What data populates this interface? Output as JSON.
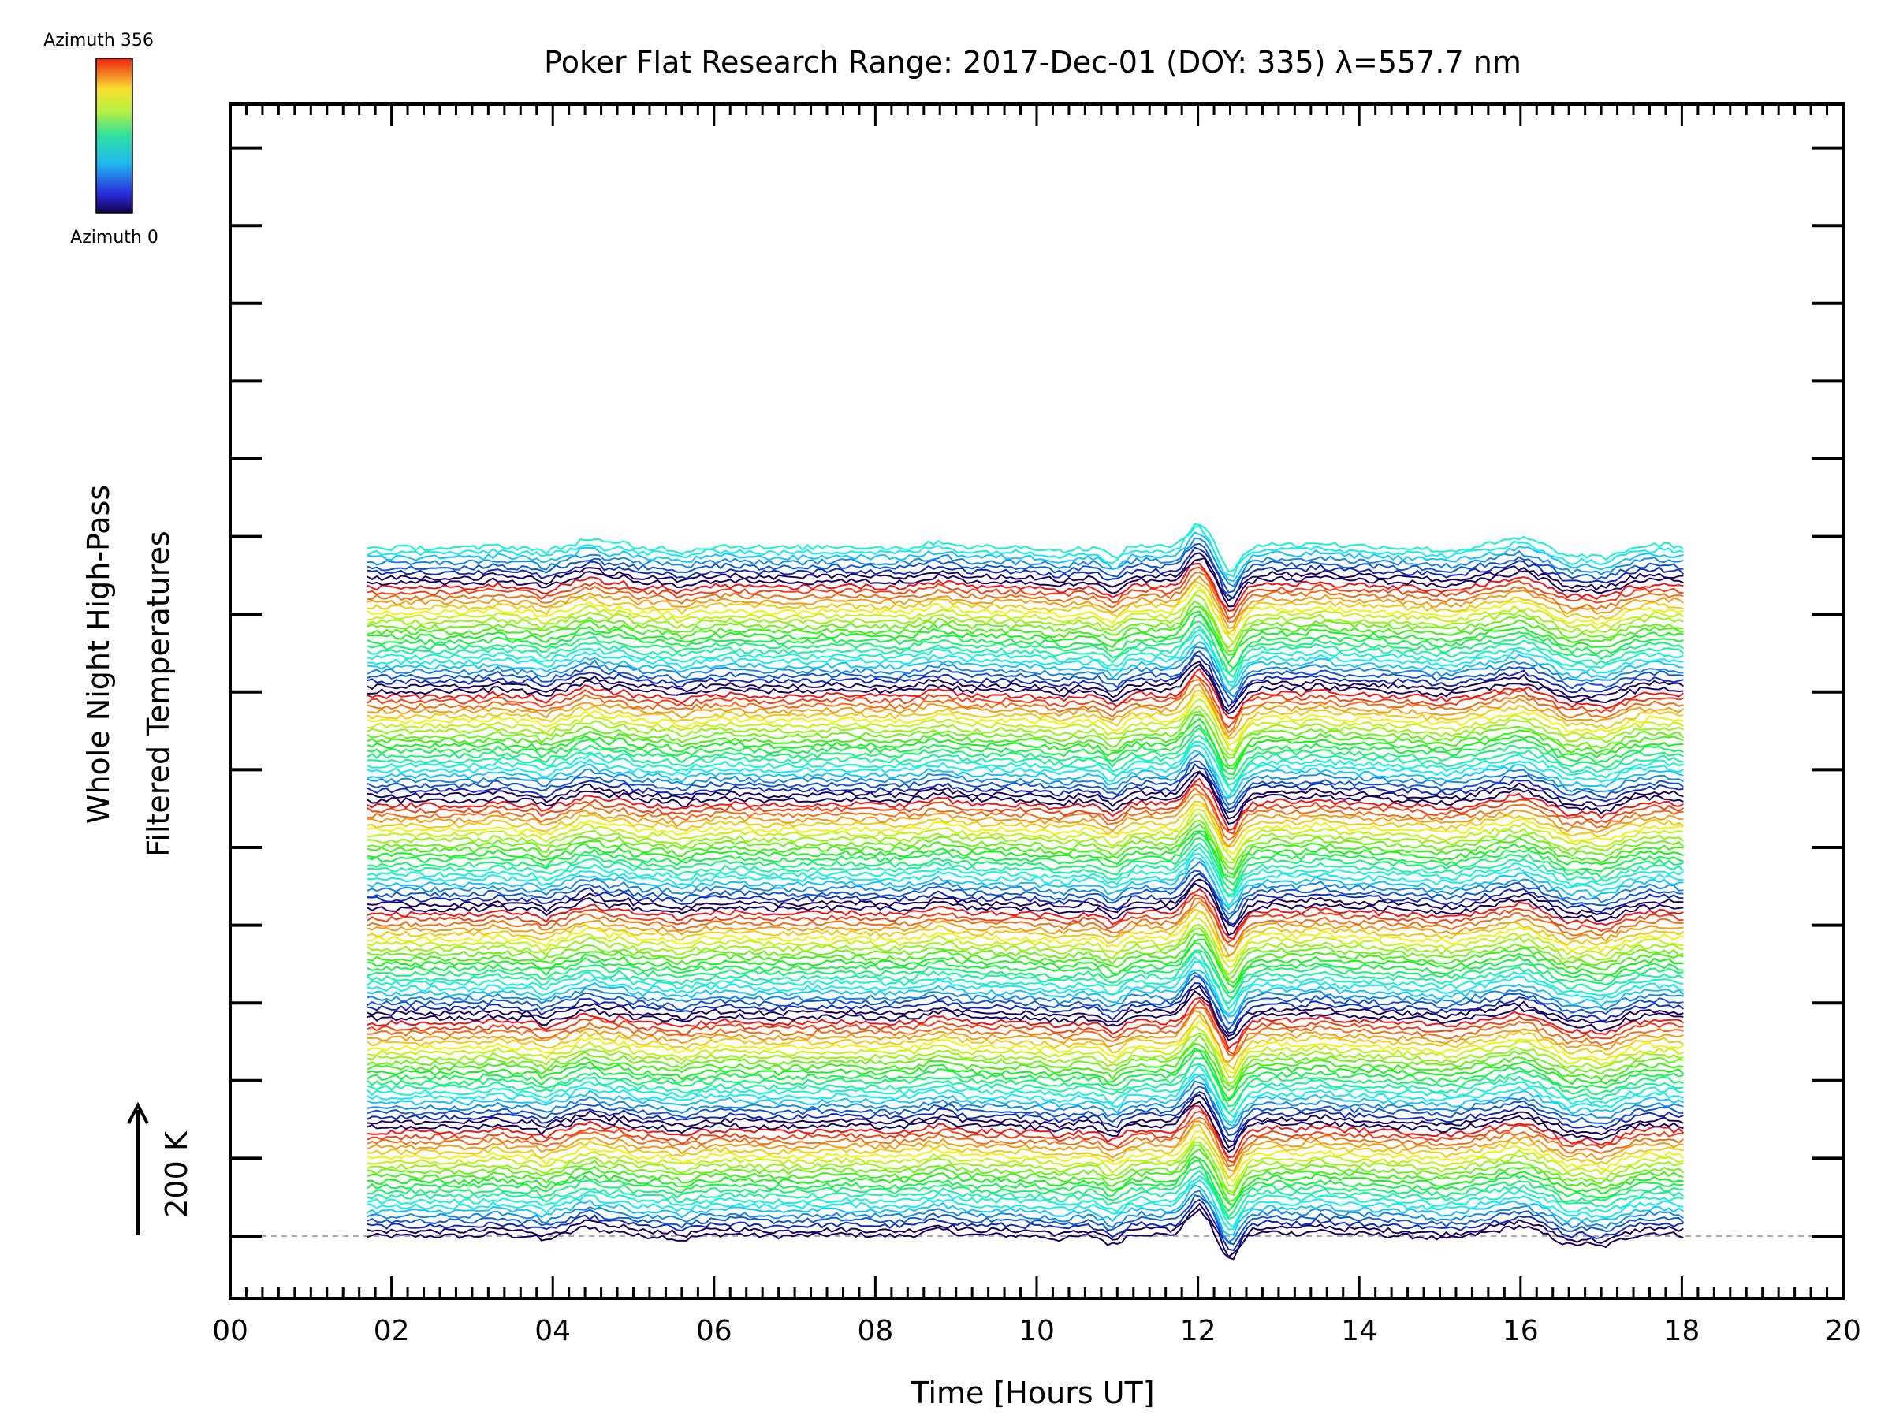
{
  "chart_data": {
    "type": "line",
    "title": "Poker Flat Research Range: 2017-Dec-01 (DOY: 335) λ=557.7 nm",
    "xlabel": "Time [Hours UT]",
    "ylabel_line1": "Whole Night High-Pass",
    "ylabel_line2": "Filtered Temperatures",
    "scale_label": "200 K",
    "scale_value_K": 200,
    "xlim": [
      0,
      20
    ],
    "x_ticks": [
      "00",
      "02",
      "04",
      "06",
      "08",
      "10",
      "12",
      "14",
      "16",
      "18",
      "20"
    ],
    "colorbar": {
      "top_label": "Azimuth 356",
      "bottom_label": "Azimuth 0",
      "min": 0,
      "max": 356
    },
    "trace_time_range_hours": [
      1.7,
      18.05
    ],
    "trace_count": 140,
    "scans_per_cycle": 22,
    "key_features": [
      {
        "time_hours": 12.0,
        "description": "sharp positive peak"
      },
      {
        "time_hours": 12.4,
        "description": "sharp negative dip"
      },
      {
        "time_hours": 4.5,
        "description": "positive bump"
      },
      {
        "time_hours": 16.0,
        "description": "positive bump"
      },
      {
        "time_hours": 17.0,
        "description": "negative dip"
      }
    ],
    "grid": false
  }
}
